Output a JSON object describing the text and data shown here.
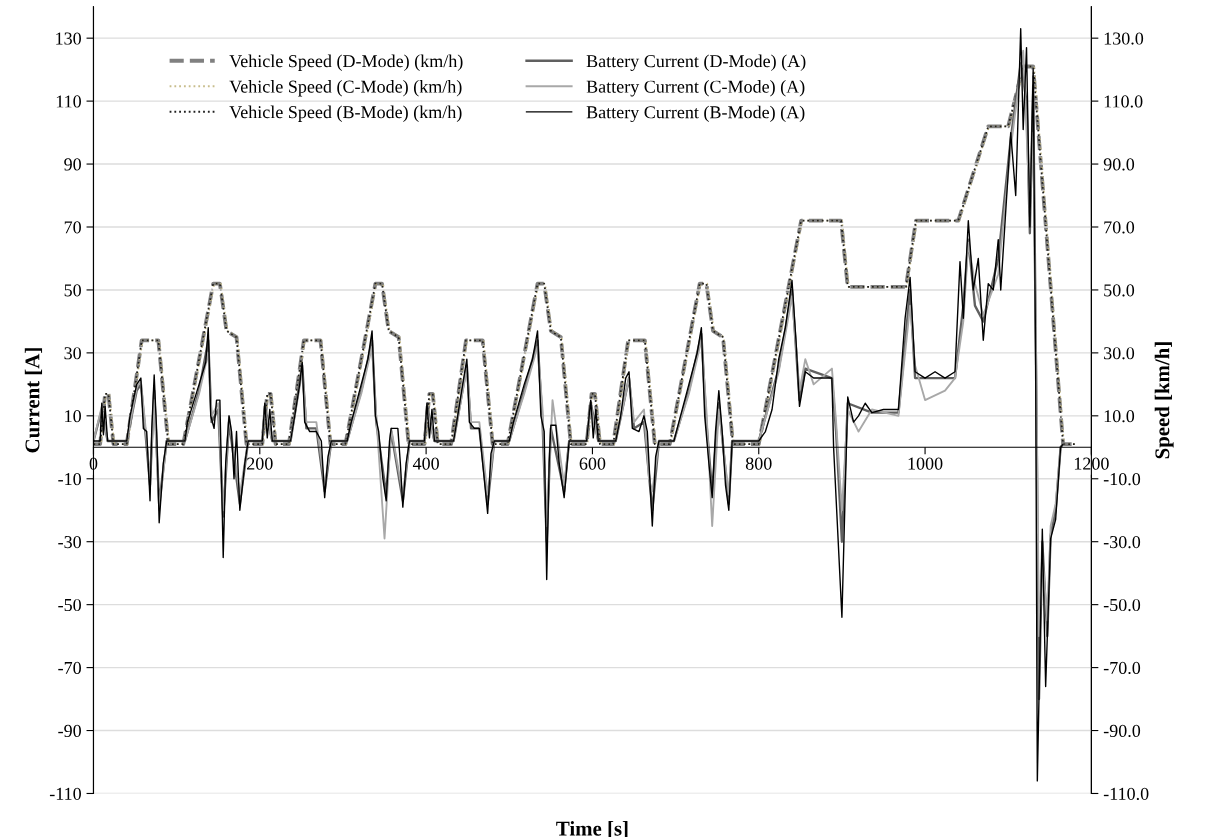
{
  "chart_data": {
    "type": "line",
    "xlabel": "Time [s]",
    "ylabel": "Current [A]",
    "y2label": "Speed [km/h]",
    "xlim": [
      0,
      1200
    ],
    "xticks": [
      0,
      200,
      400,
      600,
      800,
      1000,
      1200
    ],
    "ylim": [
      -110,
      140
    ],
    "yticks": [
      -110,
      -90,
      -70,
      -50,
      -30,
      -10,
      10,
      30,
      50,
      70,
      90,
      110,
      130
    ],
    "y2lim": [
      -110,
      140
    ],
    "y2ticks": [
      {
        "value": -110,
        "label": "-110.0"
      },
      {
        "value": -90,
        "label": "-90.0"
      },
      {
        "value": -70,
        "label": "-70.0"
      },
      {
        "value": -50,
        "label": "-50.0"
      },
      {
        "value": -30,
        "label": "-30.0"
      },
      {
        "value": -10,
        "label": "-10.0"
      },
      {
        "value": 10,
        "label": "10.0"
      },
      {
        "value": 30,
        "label": "30.0"
      },
      {
        "value": 50,
        "label": "50.0"
      },
      {
        "value": 70,
        "label": "70.0"
      },
      {
        "value": 90,
        "label": "90.0"
      },
      {
        "value": 110,
        "label": "110.0"
      },
      {
        "value": 130,
        "label": "130.0"
      }
    ],
    "grid": "y",
    "legend": "top left",
    "marker": "none",
    "series": [
      {
        "name": "Vehicle Speed (D-Mode) (km/h)",
        "color": "#808080",
        "axis": "y2",
        "line_style": "dashed",
        "x": [
          0,
          8,
          14,
          18,
          24,
          40,
          58,
          78,
          90,
          108,
          144,
          152,
          160,
          172,
          184,
          195,
          203,
          209,
          213,
          219,
          235,
          253,
          273,
          285,
          303,
          339,
          347,
          355,
          367,
          379,
          390,
          398,
          404,
          408,
          414,
          430,
          448,
          468,
          480,
          498,
          534,
          542,
          550,
          562,
          574,
          585,
          593,
          599,
          603,
          609,
          625,
          643,
          663,
          675,
          693,
          729,
          737,
          745,
          757,
          769,
          780,
          800,
          851,
          899,
          907,
          977,
          989,
          1040,
          1076,
          1100,
          1118,
          1130,
          1166,
          1180
        ],
        "values": [
          1,
          1,
          17,
          17,
          1,
          1,
          34,
          34,
          1,
          1,
          52,
          52,
          37,
          35,
          1,
          1,
          1,
          17,
          17,
          1,
          1,
          34,
          34,
          1,
          1,
          52,
          52,
          37,
          35,
          1,
          1,
          1,
          17,
          17,
          1,
          1,
          34,
          34,
          1,
          1,
          52,
          52,
          37,
          35,
          1,
          1,
          1,
          17,
          17,
          1,
          1,
          34,
          34,
          1,
          1,
          52,
          52,
          37,
          35,
          1,
          1,
          1,
          72,
          72,
          51,
          51,
          72,
          72,
          102,
          102,
          121,
          121,
          1,
          1
        ]
      },
      {
        "name": "Vehicle Speed (C-Mode) (km/h)",
        "color": "#c8bd8c",
        "axis": "y2",
        "line_style": "dotted",
        "x": [
          0,
          9,
          15,
          19,
          25,
          41,
          59,
          79,
          91,
          109,
          145,
          153,
          161,
          173,
          185,
          196,
          204,
          210,
          214,
          220,
          236,
          254,
          274,
          286,
          304,
          340,
          348,
          356,
          368,
          380,
          391,
          399,
          405,
          409,
          415,
          431,
          449,
          469,
          481,
          499,
          535,
          543,
          551,
          563,
          575,
          586,
          594,
          600,
          604,
          610,
          626,
          644,
          664,
          676,
          694,
          730,
          738,
          746,
          758,
          770,
          781,
          801,
          852,
          900,
          908,
          978,
          990,
          1041,
          1077,
          1101,
          1119,
          1131,
          1167,
          1180
        ],
        "values": [
          1,
          1,
          17,
          17,
          1,
          1,
          34,
          34,
          1,
          1,
          52,
          52,
          37,
          35,
          1,
          1,
          1,
          17,
          17,
          1,
          1,
          34,
          34,
          1,
          1,
          52,
          52,
          37,
          35,
          1,
          1,
          1,
          17,
          17,
          1,
          1,
          34,
          34,
          1,
          1,
          52,
          52,
          37,
          35,
          1,
          1,
          1,
          17,
          17,
          1,
          1,
          34,
          34,
          1,
          1,
          52,
          52,
          37,
          35,
          1,
          1,
          1,
          72,
          72,
          51,
          51,
          72,
          72,
          102,
          102,
          121,
          121,
          1,
          1
        ]
      },
      {
        "name": "Vehicle Speed (B-Mode) (km/h)",
        "color": "#202020",
        "axis": "y2",
        "line_style": "dotted",
        "x": [
          0,
          8,
          14,
          18,
          24,
          40,
          58,
          78,
          90,
          108,
          144,
          152,
          160,
          172,
          184,
          195,
          203,
          209,
          213,
          219,
          235,
          253,
          273,
          285,
          303,
          339,
          347,
          355,
          367,
          379,
          390,
          398,
          404,
          408,
          414,
          430,
          448,
          468,
          480,
          498,
          534,
          542,
          550,
          562,
          574,
          585,
          593,
          599,
          603,
          609,
          625,
          643,
          663,
          675,
          693,
          729,
          737,
          745,
          757,
          769,
          780,
          800,
          851,
          899,
          907,
          977,
          989,
          1040,
          1076,
          1100,
          1118,
          1130,
          1166,
          1180
        ],
        "values": [
          1,
          1,
          17,
          17,
          1,
          1,
          34,
          34,
          1,
          1,
          52,
          52,
          37,
          35,
          1,
          1,
          1,
          17,
          17,
          1,
          1,
          34,
          34,
          1,
          1,
          52,
          52,
          37,
          35,
          1,
          1,
          1,
          17,
          17,
          1,
          1,
          34,
          34,
          1,
          1,
          52,
          52,
          37,
          35,
          1,
          1,
          1,
          17,
          17,
          1,
          1,
          34,
          34,
          1,
          1,
          52,
          52,
          37,
          35,
          1,
          1,
          1,
          72,
          72,
          51,
          51,
          72,
          72,
          102,
          102,
          121,
          121,
          1,
          1
        ]
      },
      {
        "name": "Battery Current (D-Mode) (A)",
        "color": "#606060",
        "line_style": "solid",
        "x": [
          0,
          10,
          17,
          40,
          52,
          57,
          62,
          68,
          73,
          79,
          88,
          110,
          127,
          138,
          142,
          150,
          156,
          163,
          176,
          186,
          203,
          206,
          215,
          237,
          251,
          256,
          268,
          278,
          286,
          305,
          322,
          335,
          340,
          352,
          358,
          372,
          380,
          398,
          401,
          410,
          433,
          449,
          454,
          464,
          474,
          482,
          500,
          518,
          534,
          540,
          545,
          550,
          566,
          572,
          593,
          598,
          607,
          628,
          644,
          650,
          662,
          672,
          680,
          698,
          716,
          731,
          737,
          744,
          752,
          764,
          768,
          800,
          824,
          840,
          849,
          856,
          888,
          893,
          900,
          907,
          936,
          968,
          982,
          988,
          1036,
          1046,
          1052,
          1060,
          1070,
          1088,
          1103,
          1115,
          1122,
          1126,
          1130,
          1134,
          1137,
          1141,
          1147,
          1151,
          1157,
          1163,
          1166
        ],
        "values": [
          2,
          12,
          2,
          2,
          18,
          20,
          6,
          -12,
          18,
          -18,
          2,
          2,
          18,
          34,
          8,
          12,
          -22,
          8,
          -18,
          2,
          2,
          13,
          2,
          2,
          26,
          6,
          6,
          -14,
          2,
          2,
          18,
          34,
          8,
          -15,
          5,
          -17,
          2,
          2,
          13,
          2,
          2,
          26,
          6,
          6,
          -18,
          2,
          2,
          18,
          34,
          8,
          -30,
          6,
          -14,
          2,
          2,
          14,
          2,
          2,
          22,
          6,
          8,
          -20,
          2,
          2,
          18,
          36,
          8,
          -14,
          14,
          -18,
          2,
          2,
          25,
          50,
          15,
          25,
          22,
          5,
          -30,
          14,
          11,
          11,
          50,
          22,
          22,
          45,
          66,
          45,
          40,
          60,
          98,
          122,
          110,
          68,
          115,
          10,
          -80,
          -30,
          -60,
          -28,
          -20,
          0,
          1
        ]
      },
      {
        "name": "Battery Current (C-Mode) (A)",
        "color": "#a8a8a8",
        "line_style": "solid",
        "x": [
          0,
          10,
          17,
          40,
          52,
          57,
          62,
          68,
          73,
          79,
          88,
          110,
          127,
          138,
          142,
          150,
          156,
          163,
          176,
          186,
          203,
          206,
          215,
          237,
          251,
          256,
          268,
          278,
          286,
          305,
          322,
          335,
          340,
          350,
          358,
          372,
          380,
          398,
          401,
          410,
          433,
          449,
          454,
          464,
          474,
          482,
          500,
          518,
          534,
          540,
          545,
          552,
          566,
          572,
          593,
          598,
          607,
          628,
          644,
          650,
          662,
          668,
          672,
          680,
          698,
          716,
          731,
          737,
          744,
          752,
          764,
          768,
          800,
          824,
          840,
          849,
          856,
          866,
          888,
          893,
          900,
          907,
          920,
          936,
          968,
          982,
          988,
          1000,
          1024,
          1036,
          1046,
          1052,
          1060,
          1070,
          1088,
          1103,
          1118,
          1126,
          1130,
          1134,
          1137,
          1141,
          1147,
          1151,
          1157,
          1163,
          1166
        ],
        "values": [
          2,
          13,
          2,
          2,
          19,
          21,
          8,
          -10,
          15,
          -20,
          2,
          2,
          17,
          30,
          10,
          14,
          -20,
          10,
          -15,
          2,
          2,
          12,
          2,
          2,
          24,
          8,
          8,
          -12,
          2,
          2,
          17,
          32,
          10,
          -29,
          6,
          -15,
          2,
          2,
          12,
          2,
          2,
          25,
          8,
          8,
          -15,
          2,
          2,
          17,
          32,
          12,
          -25,
          15,
          -12,
          2,
          2,
          13,
          2,
          2,
          22,
          8,
          12,
          -10,
          -14,
          2,
          2,
          17,
          34,
          12,
          -25,
          12,
          -15,
          2,
          2,
          24,
          48,
          18,
          28,
          20,
          25,
          8,
          -20,
          12,
          5,
          12,
          10,
          45,
          26,
          15,
          18,
          22,
          40,
          65,
          52,
          42,
          55,
          95,
          126,
          75,
          100,
          20,
          -60,
          -35,
          -55,
          -25,
          -18,
          0,
          1
        ]
      },
      {
        "name": "Battery Current (B-Mode) (A)",
        "color": "#000000",
        "line_style": "solid",
        "x": [
          0,
          8,
          10,
          12,
          14,
          17,
          40,
          44,
          52,
          57,
          60,
          64,
          68,
          70,
          73,
          76,
          79,
          84,
          88,
          110,
          113,
          127,
          135,
          138,
          141,
          145,
          148,
          152,
          154,
          156,
          159,
          163,
          166,
          169,
          172,
          176,
          182,
          186,
          203,
          206,
          209,
          212,
          215,
          237,
          242,
          248,
          251,
          254,
          260,
          268,
          274,
          278,
          282,
          286,
          305,
          310,
          322,
          330,
          335,
          339,
          343,
          348,
          352,
          356,
          358,
          366,
          369,
          372,
          376,
          380,
          398,
          401,
          404,
          407,
          410,
          433,
          438,
          444,
          449,
          452,
          458,
          464,
          468,
          474,
          478,
          482,
          500,
          505,
          518,
          528,
          534,
          538,
          542,
          545,
          548,
          550,
          556,
          560,
          566,
          572,
          593,
          598,
          601,
          604,
          607,
          628,
          634,
          640,
          644,
          648,
          656,
          662,
          666,
          672,
          676,
          680,
          698,
          704,
          716,
          726,
          731,
          735,
          740,
          744,
          748,
          752,
          756,
          760,
          764,
          768,
          800,
          808,
          816,
          824,
          832,
          840,
          845,
          849,
          856,
          866,
          888,
          890,
          900,
          907,
          914,
          920,
          928,
          936,
          950,
          968,
          976,
          982,
          988,
          1000,
          1012,
          1024,
          1036,
          1042,
          1046,
          1052,
          1058,
          1064,
          1070,
          1076,
          1082,
          1088,
          1091,
          1103,
          1109,
          1115,
          1118,
          1122,
          1126,
          1130,
          1133,
          1135,
          1141,
          1145,
          1151,
          1157,
          1163,
          1166
        ],
        "values": [
          2,
          2,
          14,
          4,
          13,
          2,
          2,
          10,
          20,
          22,
          6,
          5,
          -17,
          5,
          23,
          5,
          -24,
          -5,
          2,
          2,
          8,
          20,
          27,
          38,
          10,
          6,
          15,
          15,
          -10,
          -35,
          -5,
          10,
          5,
          -10,
          5,
          -20,
          -5,
          2,
          2,
          14,
          3,
          12,
          2,
          2,
          10,
          20,
          27,
          8,
          5,
          5,
          2,
          -16,
          -3,
          2,
          2,
          8,
          20,
          28,
          37,
          10,
          5,
          -10,
          -17,
          2,
          6,
          6,
          -5,
          -19,
          -5,
          2,
          2,
          14,
          3,
          12,
          2,
          2,
          10,
          20,
          28,
          8,
          6,
          6,
          -5,
          -21,
          -2,
          2,
          2,
          8,
          20,
          28,
          37,
          10,
          5,
          -42,
          -5,
          7,
          7,
          -5,
          -16,
          2,
          2,
          15,
          3,
          12,
          2,
          2,
          10,
          22,
          24,
          6,
          5,
          10,
          5,
          -25,
          -3,
          2,
          2,
          8,
          20,
          30,
          38,
          10,
          -5,
          -16,
          5,
          18,
          5,
          -12,
          -20,
          2,
          2,
          5,
          12,
          28,
          38,
          53,
          33,
          13,
          24,
          22,
          22,
          0,
          -54,
          16,
          8,
          10,
          14,
          11,
          12,
          12,
          41,
          54,
          24,
          22,
          24,
          22,
          24,
          59,
          41,
          72,
          50,
          60,
          34,
          52,
          50,
          66,
          50,
          100,
          80,
          133,
          101,
          127,
          70,
          120,
          26,
          -106,
          -26,
          -76,
          -29,
          -23,
          0,
          1
        ]
      }
    ]
  }
}
